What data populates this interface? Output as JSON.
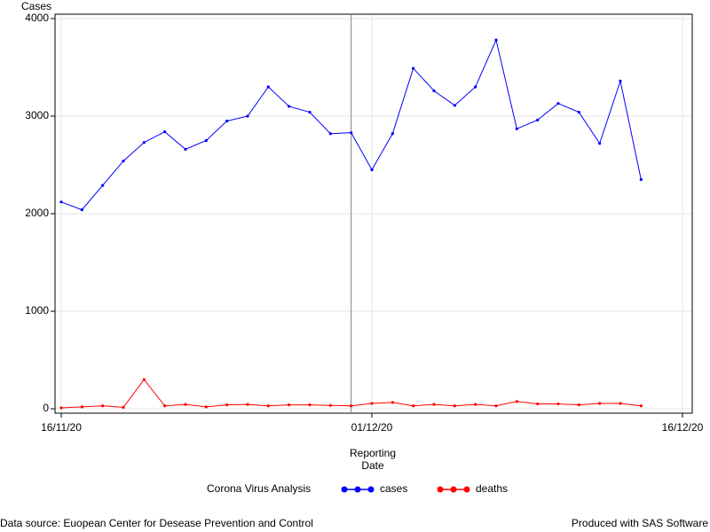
{
  "chart_data": {
    "type": "line",
    "y_label": "Cases",
    "x_label": "Reporting Date",
    "legend_title": "Corona Virus Analysis",
    "footnote_left": "Data source: Euopean Center for Desease Prevention and Control",
    "footnote_right": "Produced with SAS Software",
    "x": [
      "16/11/20",
      "17/11/20",
      "18/11/20",
      "19/11/20",
      "20/11/20",
      "21/11/20",
      "22/11/20",
      "23/11/20",
      "24/11/20",
      "25/11/20",
      "26/11/20",
      "27/11/20",
      "28/11/20",
      "29/11/20",
      "30/11/20",
      "01/12/20",
      "02/12/20",
      "03/12/20",
      "04/12/20",
      "05/12/20",
      "06/12/20",
      "07/12/20",
      "08/12/20",
      "09/12/20",
      "10/12/20",
      "11/12/20",
      "12/12/20",
      "13/12/20",
      "14/12/20"
    ],
    "series": [
      {
        "name": "cases",
        "color": "#0000ff",
        "values": [
          2120,
          2040,
          2290,
          2540,
          2730,
          2840,
          2660,
          2750,
          2950,
          3000,
          3300,
          3100,
          3040,
          2820,
          2830,
          2450,
          2820,
          3490,
          3260,
          3110,
          3300,
          3780,
          2870,
          2960,
          3130,
          3040,
          2720,
          3360,
          2350
        ]
      },
      {
        "name": "deaths",
        "color": "#ff0000",
        "values": [
          10,
          20,
          30,
          15,
          300,
          30,
          45,
          20,
          40,
          45,
          30,
          40,
          40,
          35,
          30,
          55,
          65,
          30,
          45,
          30,
          45,
          30,
          75,
          50,
          50,
          40,
          55,
          55,
          30
        ]
      }
    ],
    "xlim": [
      "16/11/20",
      "16/12/20"
    ],
    "xticks": [
      "16/11/20",
      "01/12/20",
      "16/12/20"
    ],
    "ylim": [
      -45,
      4045
    ],
    "yticks": [
      0,
      1000,
      2000,
      3000,
      4000
    ],
    "reference_line": "30/11/20",
    "grid": true
  }
}
